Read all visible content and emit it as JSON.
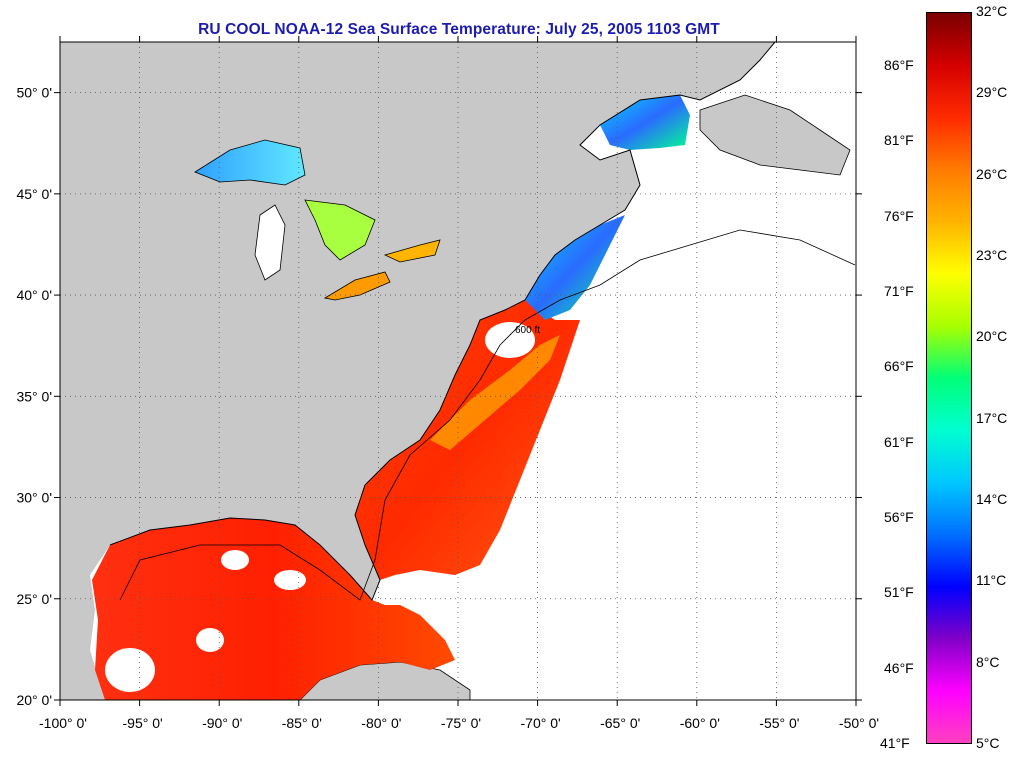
{
  "title": "RU COOL  NOAA-12  Sea Surface Temperature:  July 25, 2005 1103 GMT",
  "map": {
    "lon_range": [
      -100,
      -50
    ],
    "lat_range": [
      20,
      52.5
    ],
    "lon_ticks": [
      {
        "value": -100,
        "label": "-100° 0'"
      },
      {
        "value": -95,
        "label": "-95° 0'"
      },
      {
        "value": -90,
        "label": "-90° 0'"
      },
      {
        "value": -85,
        "label": "-85° 0'"
      },
      {
        "value": -80,
        "label": "-80° 0'"
      },
      {
        "value": -75,
        "label": "-75° 0'"
      },
      {
        "value": -70,
        "label": "-70° 0'"
      },
      {
        "value": -65,
        "label": "-65° 0'"
      },
      {
        "value": -60,
        "label": "-60° 0'"
      },
      {
        "value": -55,
        "label": "-55° 0'"
      },
      {
        "value": -50,
        "label": "-50° 0'"
      }
    ],
    "lat_ticks": [
      {
        "value": 20,
        "label": "20° 0'"
      },
      {
        "value": 25,
        "label": "25° 0'"
      },
      {
        "value": 30,
        "label": "30° 0'"
      },
      {
        "value": 35,
        "label": "35° 0'"
      },
      {
        "value": 40,
        "label": "40° 0'"
      },
      {
        "value": 45,
        "label": "45° 0'"
      },
      {
        "value": 50,
        "label": "50° 0'"
      }
    ],
    "contour_label": "600 ft",
    "colors": {
      "land": "#c8c8c8",
      "ocean_nodata": "#ffffff",
      "grid": "#555555"
    }
  },
  "colorbar": {
    "celsius_labels": [
      "32°C",
      "29°C",
      "26°C",
      "23°C",
      "20°C",
      "17°C",
      "14°C",
      "11°C",
      "8°C",
      "5°C"
    ],
    "fahrenheit_labels": [
      "86°F",
      "81°F",
      "76°F",
      "71°F",
      "66°F",
      "61°F",
      "56°F",
      "51°F",
      "46°F",
      "41°F"
    ],
    "colors_top_to_bottom": [
      "#7a0000",
      "#d40000",
      "#ff2a00",
      "#ff7a00",
      "#ffb400",
      "#ffff00",
      "#a8ff00",
      "#00ff78",
      "#00ffd0",
      "#00c8ff",
      "#0070ff",
      "#0000ff",
      "#8000c8",
      "#ff00ff",
      "#ff40c0"
    ]
  }
}
